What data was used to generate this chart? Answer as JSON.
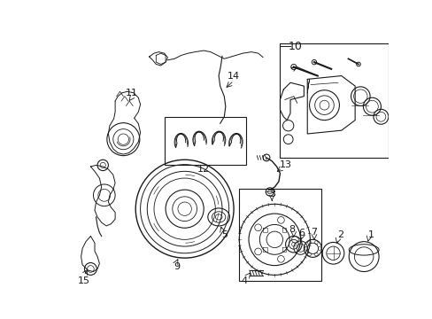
{
  "bg": "#ffffff",
  "lc": "#1a1a1a",
  "fig_w": 4.89,
  "fig_h": 3.6,
  "dpi": 100,
  "xlim": [
    0,
    489
  ],
  "ylim": [
    0,
    360
  ]
}
